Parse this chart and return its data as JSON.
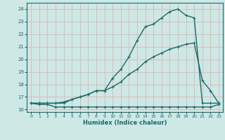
{
  "xlabel": "Humidex (Indice chaleur)",
  "xlim": [
    -0.5,
    23.5
  ],
  "ylim": [
    15.8,
    24.5
  ],
  "yticks": [
    16,
    17,
    18,
    19,
    20,
    21,
    22,
    23,
    24
  ],
  "xticks": [
    0,
    1,
    2,
    3,
    4,
    5,
    6,
    7,
    8,
    9,
    10,
    11,
    12,
    13,
    14,
    15,
    16,
    17,
    18,
    19,
    20,
    21,
    22,
    23
  ],
  "bg_color": "#cde8e5",
  "grid_color": "#dbbcbc",
  "line_color": "#1a6b6b",
  "line1_x": [
    0,
    1,
    2,
    3,
    4,
    5,
    6,
    7,
    8,
    9,
    10,
    11,
    12,
    13,
    14,
    15,
    16,
    17,
    18,
    19,
    20,
    21,
    22,
    23
  ],
  "line1_y": [
    16.5,
    16.4,
    16.4,
    16.2,
    16.2,
    16.2,
    16.2,
    16.2,
    16.2,
    16.2,
    16.2,
    16.2,
    16.2,
    16.2,
    16.2,
    16.2,
    16.2,
    16.2,
    16.2,
    16.2,
    16.2,
    16.2,
    16.2,
    16.4
  ],
  "line2_x": [
    0,
    1,
    2,
    3,
    4,
    5,
    6,
    7,
    8,
    9,
    10,
    11,
    12,
    13,
    14,
    15,
    16,
    17,
    18,
    19,
    20,
    21,
    22,
    23
  ],
  "line2_y": [
    16.5,
    16.5,
    16.5,
    16.5,
    16.6,
    16.8,
    17.0,
    17.2,
    17.5,
    17.5,
    17.8,
    18.2,
    18.8,
    19.2,
    19.8,
    20.2,
    20.5,
    20.8,
    21.0,
    21.2,
    21.3,
    18.3,
    17.5,
    16.5
  ],
  "line3_x": [
    0,
    1,
    2,
    3,
    4,
    5,
    6,
    7,
    8,
    9,
    10,
    11,
    12,
    13,
    14,
    15,
    16,
    17,
    18,
    19,
    20,
    21,
    22,
    23
  ],
  "line3_y": [
    16.5,
    16.5,
    16.5,
    16.5,
    16.5,
    16.8,
    17.0,
    17.2,
    17.5,
    17.5,
    18.5,
    19.2,
    20.2,
    21.5,
    22.6,
    22.8,
    23.3,
    23.8,
    24.0,
    23.5,
    23.3,
    16.5,
    16.5,
    16.5
  ]
}
